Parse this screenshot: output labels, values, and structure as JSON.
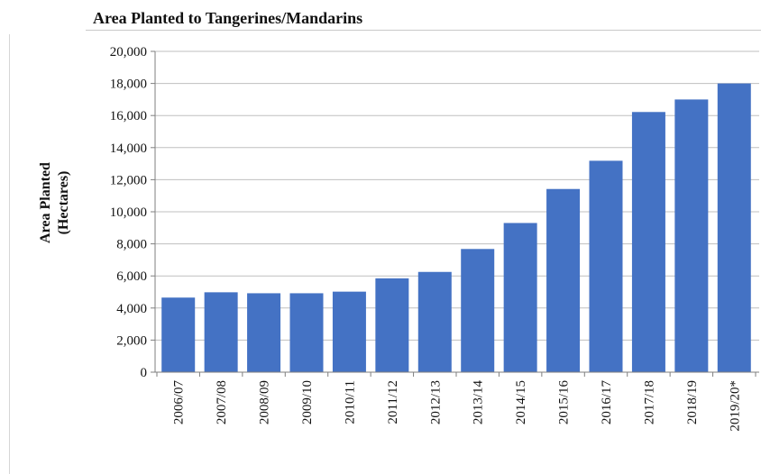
{
  "chart_data": {
    "type": "bar",
    "title": "Area Planted to Tangerines/Mandarins",
    "ylabel_lines": [
      "Area Planted",
      "(Hectares)"
    ],
    "xlabel": "",
    "categories": [
      "2006/07",
      "2007/08",
      "2008/09",
      "2009/10",
      "2010/11",
      "2011/12",
      "2012/13",
      "2013/14",
      "2014/15",
      "2015/16",
      "2016/17",
      "2017/18",
      "2018/19",
      "2019/20*"
    ],
    "values": [
      4650,
      4980,
      4920,
      4920,
      5020,
      5850,
      6250,
      7680,
      9300,
      11420,
      13180,
      16220,
      17000,
      18000
    ],
    "ylim": [
      0,
      20000
    ],
    "yticks": [
      "0",
      "2,000",
      "4,000",
      "6,000",
      "8,000",
      "10,000",
      "12,000",
      "14,000",
      "16,000",
      "18,000",
      "20,000"
    ],
    "grid": true,
    "legend": "none",
    "bar_color": "#4472c4"
  }
}
